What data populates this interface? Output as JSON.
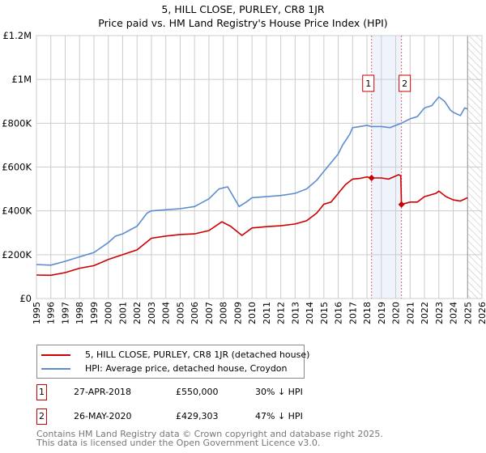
{
  "header": {
    "title": "5, HILL CLOSE, PURLEY, CR8 1JR",
    "subtitle": "Price paid vs. HM Land Registry's House Price Index (HPI)"
  },
  "chart_data": {
    "type": "line",
    "title": "5, HILL CLOSE, PURLEY, CR8 1JR",
    "subtitle": "Price paid vs. HM Land Registry's House Price Index (HPI)",
    "xlim": [
      1995,
      2026
    ],
    "ylim": [
      0,
      1200000
    ],
    "x_ticks": [
      "1995",
      "1996",
      "1997",
      "1998",
      "1999",
      "2000",
      "2001",
      "2002",
      "2003",
      "2004",
      "2005",
      "2006",
      "2007",
      "2008",
      "2009",
      "2010",
      "2011",
      "2012",
      "2013",
      "2014",
      "2015",
      "2016",
      "2017",
      "2018",
      "2019",
      "2020",
      "2021",
      "2022",
      "2023",
      "2024",
      "2025",
      "2026"
    ],
    "y_ticks": [
      {
        "v": 0,
        "label": "£0"
      },
      {
        "v": 200000,
        "label": "£200K"
      },
      {
        "v": 400000,
        "label": "£400K"
      },
      {
        "v": 600000,
        "label": "£600K"
      },
      {
        "v": 800000,
        "label": "£800K"
      },
      {
        "v": 1000000,
        "label": "£1M"
      },
      {
        "v": 1200000,
        "label": "£1.2M"
      }
    ],
    "grid": true,
    "series": [
      {
        "name": "5, HILL CLOSE, PURLEY, CR8 1JR (detached house)",
        "color": "#cc0000",
        "x": [
          1995,
          1996,
          1997,
          1998,
          1999,
          2000,
          2001,
          2002,
          2003,
          2004,
          2005,
          2006,
          2007,
          2007.9,
          2008.5,
          2009.3,
          2010,
          2011,
          2012,
          2013,
          2013.8,
          2014.5,
          2015,
          2015.5,
          2016,
          2016.5,
          2017,
          2017.5,
          2018,
          2018.32,
          2019,
          2019.5,
          2020.2,
          2020.35,
          2020.4,
          2021,
          2021.5,
          2022,
          2022.8,
          2023,
          2023.5,
          2024,
          2024.5,
          2025
        ],
        "y": [
          107000,
          106000,
          118000,
          138000,
          150000,
          178000,
          200000,
          222000,
          275000,
          285000,
          292000,
          295000,
          310000,
          350000,
          330000,
          288000,
          322000,
          328000,
          332000,
          340000,
          355000,
          390000,
          430000,
          440000,
          480000,
          520000,
          545000,
          548000,
          555000,
          550000,
          550000,
          545000,
          565000,
          560000,
          429303,
          440000,
          440000,
          465000,
          480000,
          490000,
          465000,
          450000,
          445000,
          460000
        ]
      },
      {
        "name": "HPI: Average price, detached house, Croydon",
        "color": "#5b8dd0",
        "x": [
          1995,
          1996,
          1997,
          1998,
          1999,
          2000,
          2000.5,
          2001,
          2002,
          2002.7,
          2003,
          2004,
          2005,
          2006,
          2007,
          2007.7,
          2008.3,
          2009.1,
          2009.6,
          2010,
          2011,
          2012,
          2013,
          2013.8,
          2014.5,
          2015,
          2015.5,
          2016,
          2016.3,
          2016.8,
          2017,
          2017.5,
          2018,
          2018.32,
          2019,
          2019.6,
          2020.4,
          2021,
          2021.5,
          2022,
          2022.5,
          2023,
          2023.4,
          2023.8,
          2024,
          2024.5,
          2024.8,
          2025
        ],
        "y": [
          155000,
          152000,
          170000,
          190000,
          210000,
          255000,
          285000,
          295000,
          330000,
          390000,
          400000,
          405000,
          410000,
          420000,
          455000,
          500000,
          510000,
          420000,
          440000,
          460000,
          465000,
          470000,
          480000,
          500000,
          540000,
          580000,
          620000,
          660000,
          700000,
          750000,
          780000,
          785000,
          790000,
          785000,
          785000,
          780000,
          800000,
          820000,
          830000,
          870000,
          880000,
          920000,
          900000,
          860000,
          850000,
          835000,
          870000,
          865000
        ]
      }
    ],
    "sales": [
      {
        "num": "1",
        "x": 2018.32,
        "y": 550000
      },
      {
        "num": "2",
        "x": 2020.4,
        "y": 429303
      }
    ],
    "shade": [
      2018.32,
      2020.4
    ],
    "hatch_from": 2025.0
  },
  "legend": {
    "items": [
      "5, HILL CLOSE, PURLEY, CR8 1JR (detached house)",
      "HPI: Average price, detached house, Croydon"
    ]
  },
  "sales_table": [
    {
      "num": "1",
      "date": "27-APR-2018",
      "price": "£550,000",
      "hpi": "30% ↓ HPI"
    },
    {
      "num": "2",
      "date": "26-MAY-2020",
      "price": "£429,303",
      "hpi": "47% ↓ HPI"
    }
  ],
  "footer": {
    "line1": "Contains HM Land Registry data © Crown copyright and database right 2025.",
    "line2": "This data is licensed under the Open Government Licence v3.0."
  }
}
